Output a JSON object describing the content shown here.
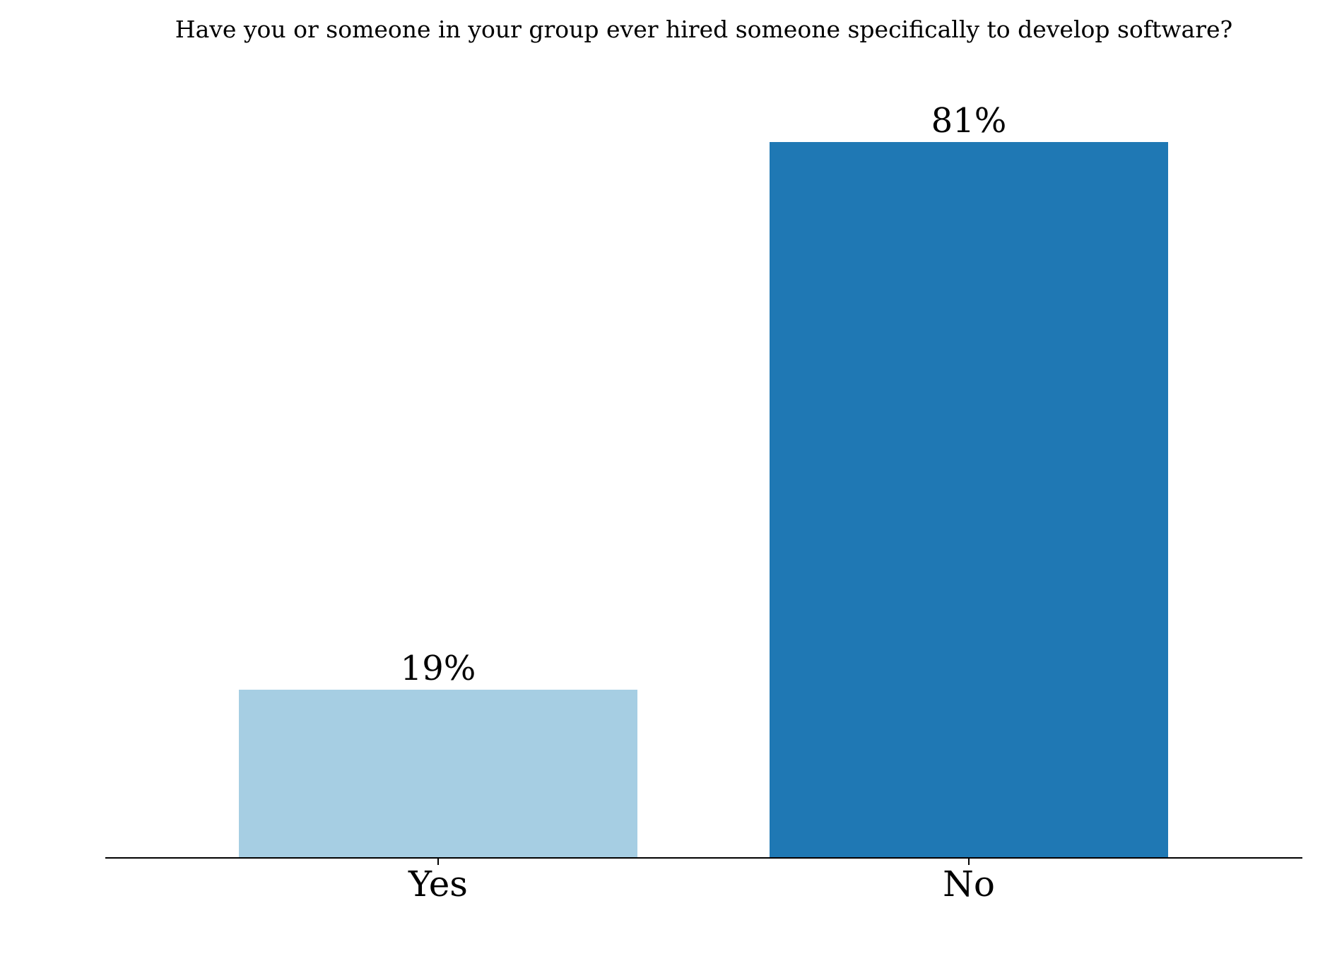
{
  "chart_data": {
    "type": "bar",
    "title": "Have you or someone in your group ever hired someone specifically to develop software?",
    "categories": [
      "Yes",
      "No"
    ],
    "values": [
      19,
      81
    ],
    "value_labels": [
      "19%",
      "81%"
    ],
    "bar_colors": [
      "#a6cee3",
      "#1f78b4"
    ],
    "xlabel": "",
    "ylabel": "",
    "ylim": [
      0,
      100
    ],
    "grid": false,
    "legend": "none",
    "axis_line_color": "#000000",
    "text_color": "#000000"
  }
}
